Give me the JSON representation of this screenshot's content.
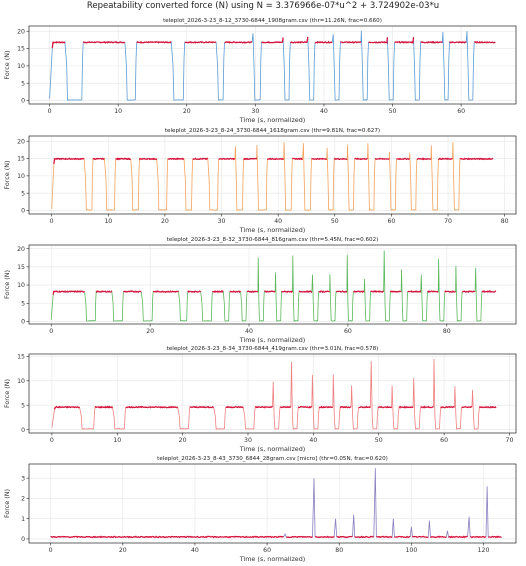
{
  "suptitle": "Repeatability converted force (N) using N = 3.376966e-07*u^2 + 3.724902e-03*u",
  "colors": {
    "highlight": "#d6163f",
    "grid": "#e6e6e6",
    "axis": "#222222"
  },
  "chart_data": [
    {
      "type": "line",
      "title": "teleplot_2026-3-23_8-12_3730-6844_1908gram.csv (thr=11.26N, frac=0.660)",
      "xlabel": "Time (s, normalized)",
      "ylabel": "Force (N)",
      "xlim": [
        -3,
        68
      ],
      "ylim": [
        -1,
        21.5
      ],
      "xticks": [
        0,
        10,
        20,
        30,
        40,
        50,
        60
      ],
      "yticks": [
        0,
        5,
        10,
        15,
        20
      ],
      "series_color": "#5b9bd5",
      "plateau_level": 16.8,
      "spike_max": 20.5,
      "x_end": 65,
      "dips": [
        [
          2.5,
          4.8
        ],
        [
          11.2,
          12.6
        ],
        [
          18.0,
          19.6
        ],
        [
          24.5,
          25.4
        ],
        [
          29.8,
          30.8
        ],
        [
          34.2,
          35.0
        ],
        [
          37.8,
          38.6
        ],
        [
          41.5,
          42.3
        ],
        [
          45.6,
          46.4
        ],
        [
          49.4,
          50.2
        ],
        [
          53.2,
          54.0
        ],
        [
          57.5,
          58.2
        ],
        [
          61.0,
          61.8
        ]
      ]
    },
    {
      "type": "line",
      "title": "teleplot_2026-3-23_8-24_3730-6844_1618gram.csv (thr=9.81N, frac=0.627)",
      "xlabel": "Time (s, normalized)",
      "ylabel": "Force (N)",
      "xlim": [
        -4,
        82
      ],
      "ylim": [
        -1,
        21.5
      ],
      "xticks": [
        0,
        10,
        20,
        30,
        40,
        50,
        60,
        70,
        80
      ],
      "yticks": [
        0,
        5,
        10,
        15,
        20
      ],
      "series_color": "#f5a25b",
      "plateau_level": 14.9,
      "spike_max": 20.2,
      "x_end": 78,
      "dips": [
        [
          6.0,
          7.2
        ],
        [
          9.6,
          11.2
        ],
        [
          14.2,
          15.4
        ],
        [
          18.8,
          20.4
        ],
        [
          23.6,
          24.8
        ],
        [
          27.8,
          29.4
        ],
        [
          32.6,
          33.8
        ],
        [
          36.4,
          38.0
        ],
        [
          41.2,
          42.4
        ],
        [
          44.6,
          45.8
        ],
        [
          48.8,
          49.8
        ],
        [
          52.4,
          53.4
        ],
        [
          56.0,
          57.0
        ],
        [
          59.8,
          60.8
        ],
        [
          63.4,
          64.4
        ],
        [
          67.2,
          68.2
        ],
        [
          71.0,
          72.0
        ]
      ]
    },
    {
      "type": "line",
      "title": "teleplot_2026-3-23_8-32_3730-6844_816gram.csv (thr=5.45N, frac=0.602)",
      "xlabel": "Time (s, normalized)",
      "ylabel": "Force (N)",
      "xlim": [
        -4.5,
        94
      ],
      "ylim": [
        -0.7,
        21
      ],
      "xticks": [
        0,
        20,
        40,
        60,
        80
      ],
      "yticks": [
        0,
        5,
        10,
        15,
        20
      ],
      "series_color": "#5cb85c",
      "plateau_level": 8.2,
      "spike_max": 19.5,
      "x_end": 90,
      "dips": [
        [
          7.0,
          9.0
        ],
        [
          12.5,
          14.5
        ],
        [
          18.5,
          20.5
        ],
        [
          26.0,
          27.5
        ],
        [
          30.5,
          32.5
        ],
        [
          35.0,
          36.0
        ],
        [
          38.5,
          39.5
        ],
        [
          42.0,
          43.0
        ],
        [
          45.5,
          46.5
        ],
        [
          49.0,
          50.0
        ],
        [
          53.0,
          54.0
        ],
        [
          56.5,
          57.5
        ],
        [
          60.0,
          61.0
        ],
        [
          63.5,
          64.5
        ],
        [
          67.5,
          68.5
        ],
        [
          71.0,
          72.0
        ],
        [
          75.0,
          76.0
        ],
        [
          78.5,
          79.5
        ],
        [
          82.0,
          83.0
        ],
        [
          86.0,
          87.0
        ]
      ]
    },
    {
      "type": "line",
      "title": "teleplot_2026-3-23_8-34_3730-6844_419gram.csv (thr=3.01N, frac=0.578)",
      "xlabel": "Time (s, normalized)",
      "ylabel": "Force (N)",
      "xlim": [
        -3.5,
        71
      ],
      "ylim": [
        -0.7,
        15.5
      ],
      "xticks": [
        0,
        10,
        20,
        30,
        40,
        50,
        60,
        70
      ],
      "yticks": [
        0,
        5,
        10,
        15
      ],
      "series_color": "#f08080",
      "plateau_level": 4.6,
      "spike_max": 14.5,
      "x_end": 68,
      "dips": [
        [
          4.5,
          6.5
        ],
        [
          9.5,
          11.2
        ],
        [
          19.5,
          21.0
        ],
        [
          25.0,
          26.5
        ],
        [
          29.5,
          31.0
        ],
        [
          34.0,
          34.8
        ],
        [
          36.8,
          37.6
        ],
        [
          40.0,
          40.8
        ],
        [
          43.2,
          44.0
        ],
        [
          46.0,
          46.8
        ],
        [
          49.0,
          49.8
        ],
        [
          52.2,
          53.0
        ],
        [
          55.5,
          56.3
        ],
        [
          58.6,
          59.4
        ],
        [
          61.8,
          62.6
        ],
        [
          64.5,
          65.3
        ]
      ]
    },
    {
      "type": "line",
      "title": "teleplot_2026-3-23_8-43_3730_6844_28gram.csv [micro] (thr=0.05N, frac=0.620)",
      "xlabel": "Time (s, normalized)",
      "ylabel": "Force (N)",
      "xlim": [
        -6,
        129
      ],
      "ylim": [
        -0.2,
        3.7
      ],
      "xticks": [
        0,
        20,
        40,
        60,
        80,
        100,
        120
      ],
      "yticks": [
        0,
        1,
        2,
        3
      ],
      "series_color": "#8a7fc0",
      "plateau_level": 0.1,
      "spike_max": 3.5,
      "x_end": 125,
      "spikes": [
        [
          65,
          0.25
        ],
        [
          73,
          3.0
        ],
        [
          79,
          1.0
        ],
        [
          84,
          1.2
        ],
        [
          90,
          3.5
        ],
        [
          95,
          1.0
        ],
        [
          100,
          0.6
        ],
        [
          105,
          0.9
        ],
        [
          110,
          0.4
        ],
        [
          116,
          1.1
        ],
        [
          121,
          2.6
        ]
      ]
    }
  ]
}
